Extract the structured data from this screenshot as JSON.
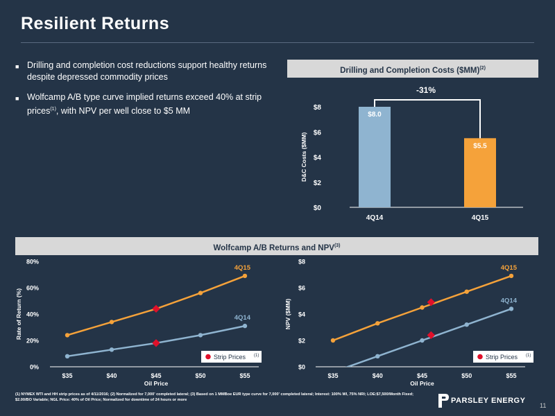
{
  "page": {
    "title": "Resilient Returns",
    "page_number": "11",
    "logo_text": "PARSLEY ENERGY",
    "footnote": "(1) NYMEX WTI and HH strip prices as of 4/11/2016; (2) Normalized for 7,000' completed lateral; (3) Based on 1 MMBoe EUR type curve for 7,000' completed lateral; Interest: 100% WI, 75% NRI; LOE:$7,500/Month Fixed; $2.00/BO Variable; NGL Price: 40% of Oil Price; Normalized for downtime of 24 hours or more"
  },
  "bullets": [
    {
      "text": "Drilling and completion cost reductions support healthy returns despite depressed commodity prices",
      "sup": "",
      "tail": ""
    },
    {
      "text": "Wolfcamp A/B type curve implied returns exceed 40% at strip prices",
      "sup": "(1)",
      "tail": ", with NPV per well close to $5 MM"
    }
  ],
  "headers": {
    "dc": {
      "text": "Drilling and Completion Costs ($MM)",
      "sup": "(2)"
    },
    "wc": {
      "text": "Wolfcamp A/B Returns and NPV",
      "sup": "(3)"
    }
  },
  "colors": {
    "bar_4q14": "#8fb4d0",
    "bar_4q15": "#f5a23a",
    "line_4q15": "#f5a23a",
    "line_4q14": "#8fb4d0",
    "strip": "#e0102a",
    "axis": "#ffffff"
  },
  "chart_data": [
    {
      "type": "bar",
      "title": "Drilling and Completion Costs ($MM)",
      "ylabel": "D&C Costs ($MM)",
      "categories": [
        "4Q14",
        "4Q15"
      ],
      "values": [
        8.0,
        5.5
      ],
      "value_labels": [
        "$8.0",
        "$5.5"
      ],
      "ylim": [
        0,
        8
      ],
      "yticks": [
        0,
        2,
        4,
        6,
        8
      ],
      "ytick_labels": [
        "$0",
        "$2",
        "$4",
        "$6",
        "$8"
      ],
      "annotation": "-31%",
      "grid": false
    },
    {
      "type": "line",
      "xlabel": "Oil Price",
      "ylabel": "Rate of Return (%)",
      "x": [
        35,
        40,
        45,
        50,
        55
      ],
      "xtick_labels": [
        "$35",
        "$40",
        "$45",
        "$50",
        "$55"
      ],
      "ylim": [
        0,
        80
      ],
      "yticks": [
        0,
        20,
        40,
        60,
        80
      ],
      "ytick_labels": [
        "0%",
        "20%",
        "40%",
        "60%",
        "80%"
      ],
      "series": [
        {
          "name": "4Q15",
          "values": [
            24,
            34,
            44,
            56,
            69
          ]
        },
        {
          "name": "4Q14",
          "values": [
            8,
            13,
            18,
            24,
            31
          ]
        }
      ],
      "strip_points": [
        {
          "series": "4Q15",
          "x": 45,
          "y": 44
        },
        {
          "series": "4Q14",
          "x": 45,
          "y": 18
        }
      ],
      "legend": {
        "label": "Strip Prices",
        "sup": "(1)",
        "placement": "bottom-right"
      },
      "grid": false
    },
    {
      "type": "line",
      "xlabel": "Oil Price",
      "ylabel": "NPV ($MM)",
      "x": [
        35,
        40,
        45,
        50,
        55
      ],
      "xtick_labels": [
        "$35",
        "$40",
        "$45",
        "$50",
        "$55"
      ],
      "ylim": [
        0,
        8
      ],
      "yticks": [
        0,
        2,
        4,
        6,
        8
      ],
      "ytick_labels": [
        "$0",
        "$2",
        "$4",
        "$6",
        "$8"
      ],
      "series": [
        {
          "name": "4Q15",
          "values": [
            2.0,
            3.3,
            4.5,
            5.7,
            6.9
          ]
        },
        {
          "name": "4Q14",
          "values": [
            -0.4,
            0.8,
            2.0,
            3.2,
            4.4
          ]
        }
      ],
      "strip_points": [
        {
          "series": "4Q15",
          "x": 46,
          "y": 4.9
        },
        {
          "series": "4Q14",
          "x": 46,
          "y": 2.4
        }
      ],
      "legend": {
        "label": "Strip Prices",
        "sup": "(1)",
        "placement": "bottom-right"
      },
      "grid": false
    }
  ]
}
